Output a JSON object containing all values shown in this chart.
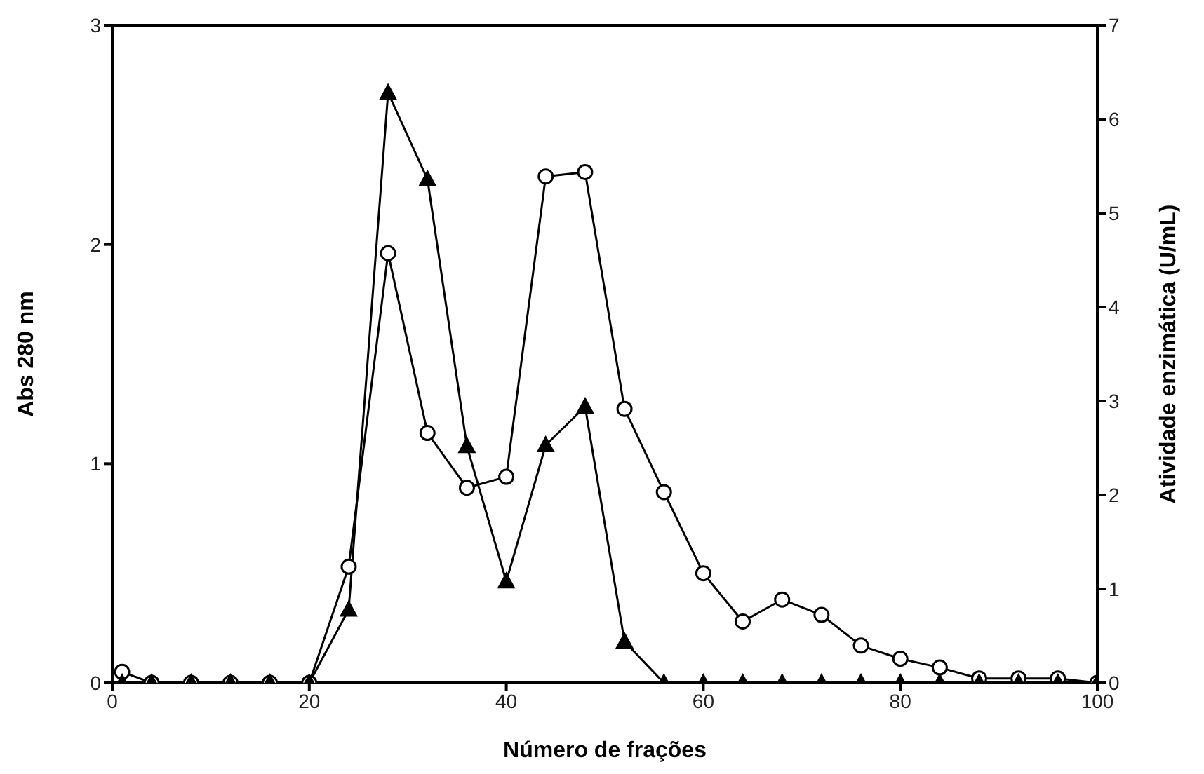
{
  "chart_data": {
    "type": "line",
    "xlabel": "Número de frações",
    "ylabel": "Abs 280 nm",
    "y2label": "Atividade enzimática (U/mL)",
    "xlim": [
      0,
      100
    ],
    "xticks": [
      0,
      20,
      40,
      60,
      80,
      100
    ],
    "ylim": [
      0,
      3
    ],
    "yticks": [
      0,
      1,
      2,
      3
    ],
    "y2lim": [
      0,
      7
    ],
    "y2ticks": [
      0,
      1,
      2,
      3,
      4,
      5,
      6,
      7
    ],
    "line_style": "solid",
    "series": [
      {
        "color": "#000000",
        "marker": "circle",
        "x": [
          1,
          4,
          8,
          12,
          16,
          20,
          24,
          28,
          32,
          36,
          40,
          44,
          48,
          52,
          56,
          60,
          64,
          68,
          72,
          76,
          80,
          84,
          88,
          92,
          96,
          100
        ],
        "values": [
          0.05,
          0,
          0,
          0,
          0,
          0,
          0.53,
          1.96,
          1.14,
          0.89,
          0.94,
          2.31,
          2.33,
          1.25,
          0.87,
          0.5,
          0.28,
          0.38,
          0.31,
          0.17,
          0.11,
          0.07,
          0.02,
          0.02,
          0.02,
          0
        ]
      },
      {
        "color": "#000000",
        "marker": "triangle",
        "axis": "y2",
        "x": [
          1,
          4,
          8,
          12,
          16,
          20,
          24,
          28,
          32,
          36,
          40,
          44,
          48,
          52,
          56,
          60,
          64,
          68,
          72,
          76,
          80,
          84,
          88,
          92,
          96,
          100
        ],
        "values": [
          0,
          0,
          0,
          0,
          0,
          0,
          0.78,
          6.28,
          5.36,
          2.52,
          1.08,
          2.53,
          2.94,
          0.44,
          0,
          0,
          0,
          0,
          0,
          0,
          0,
          0,
          0,
          0,
          0,
          0
        ]
      }
    ]
  }
}
